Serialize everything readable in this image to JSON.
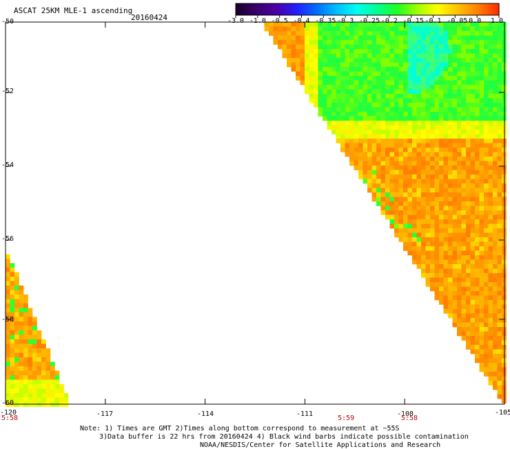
{
  "header": {
    "title": "ASCAT 25KM MLE-1 ascending",
    "date": "20160424"
  },
  "colorbar": {
    "labels": [
      "-3.0",
      "-1.0",
      "-0.5",
      "-0.4",
      "-0.35",
      "-0.3",
      "-0.25",
      "-0.2",
      "-0.15",
      "-0.1",
      "-0.05",
      "0.0",
      "1.0"
    ],
    "colors": [
      "#1a0030",
      "#3a006a",
      "#4b00a8",
      "#2020ff",
      "#0070ff",
      "#00c0ff",
      "#00ffee",
      "#00ff90",
      "#20ff20",
      "#a0ff00",
      "#ffff00",
      "#ffc000",
      "#ff8000",
      "#ff3000"
    ]
  },
  "chart_data": {
    "type": "heatmap",
    "title": "ASCAT 25KM MLE-1 ascending",
    "xlim": [
      -120,
      -105
    ],
    "ylim": [
      -60,
      -50
    ],
    "x_ticks": [
      "-120",
      "-117",
      "-114",
      "-111",
      "-108",
      "-105"
    ],
    "y_ticks": [
      "-50",
      "-52",
      "-54",
      "-56",
      "-58",
      "-60"
    ],
    "time_labels": [
      {
        "lon": -120,
        "text": "5:58"
      },
      {
        "lon": -109.5,
        "text": "5:59"
      },
      {
        "lon": -108,
        "text": "5:58"
      }
    ],
    "swaths": [
      {
        "name": "east swath",
        "region": "lon -111.5 to -105, lat -60 to -50",
        "dominant_range": "-0.05 to 0.0",
        "north_range": "-0.25 to -0.15"
      },
      {
        "name": "west swath",
        "region": "lon -120 to -118.2, lat -60 to -56.3",
        "dominant_range": "-0.05 to 0.0"
      }
    ]
  },
  "notes": [
    "Note: 1) Times are GMT 2)Times along bottom correspond to measurement at ~55S",
    "3)Data buffer is 22 hrs from 20160424 4) Black wind barbs indicate possible contamination",
    "NOAA/NESDIS/Center for Satellite Applications and Research"
  ]
}
